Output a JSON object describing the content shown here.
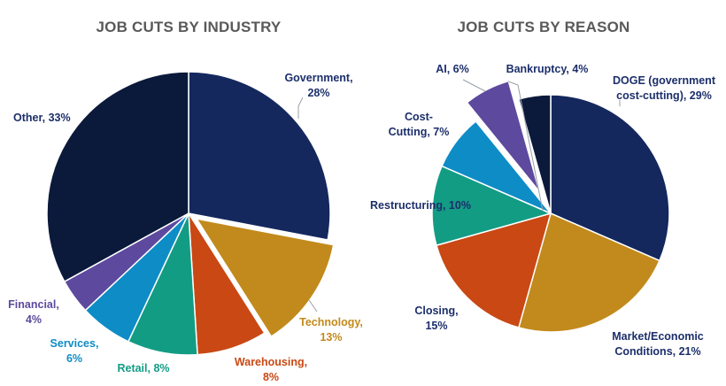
{
  "colors": {
    "navy": "#14285e",
    "dark_navy": "#0b1a3b",
    "gold": "#c28a1c",
    "orange": "#c94814",
    "teal": "#139c84",
    "blue": "#0e8cc6",
    "purple": "#5d4a9e",
    "label_navy": "#1c2f6b"
  },
  "chart_data": [
    {
      "type": "pie",
      "title": "JOB CUTS BY INDUSTRY",
      "start": "12 o'clock",
      "direction": "clockwise",
      "slices": [
        {
          "name": "Government",
          "value": 28,
          "label_lines": [
            "Government,",
            "28%"
          ],
          "color": "#14285e",
          "label_color": "#1c2f6b",
          "exploded": false
        },
        {
          "name": "Technology",
          "value": 13,
          "label_lines": [
            "Technology,",
            "13%"
          ],
          "color": "#c28a1c",
          "label_color": "#c28a1c",
          "exploded": true
        },
        {
          "name": "Warehousing",
          "value": 8,
          "label_lines": [
            "Warehousing,",
            "8%"
          ],
          "color": "#c94814",
          "label_color": "#c94814",
          "exploded": false
        },
        {
          "name": "Retail",
          "value": 8,
          "label_lines": [
            "Retail, 8%"
          ],
          "color": "#139c84",
          "label_color": "#139c84",
          "exploded": false
        },
        {
          "name": "Services",
          "value": 6,
          "label_lines": [
            "Services,",
            "6%"
          ],
          "color": "#0e8cc6",
          "label_color": "#0e8cc6",
          "exploded": false
        },
        {
          "name": "Financial",
          "value": 4,
          "label_lines": [
            "Financial,",
            "4%"
          ],
          "color": "#5d4a9e",
          "label_color": "#5d4a9e",
          "exploded": false
        },
        {
          "name": "Other",
          "value": 33,
          "label_lines": [
            "Other, 33%"
          ],
          "color": "#0b1a3b",
          "label_color": "#1c2f6b",
          "exploded": false
        }
      ]
    },
    {
      "type": "pie",
      "title": "JOB CUTS BY REASON",
      "start": "12 o'clock",
      "direction": "clockwise",
      "slices": [
        {
          "name": "DOGE (government cost-cutting)",
          "value": 29,
          "label_lines": [
            "DOGE (government",
            "cost-cutting), 29%"
          ],
          "color": "#14285e",
          "label_color": "#1c2f6b",
          "exploded": false
        },
        {
          "name": "Market/Economic Conditions",
          "value": 21,
          "label_lines": [
            "Market/Economic",
            "Conditions, 21%"
          ],
          "color": "#c28a1c",
          "label_color": "#1c2f6b",
          "exploded": false
        },
        {
          "name": "Closing",
          "value": 15,
          "label_lines": [
            "Closing,",
            "15%"
          ],
          "color": "#c94814",
          "label_color": "#1c2f6b",
          "exploded": false
        },
        {
          "name": "Restructuring",
          "value": 10,
          "label_lines": [
            "Restructuring, 10%"
          ],
          "color": "#139c84",
          "label_color": "#1c2f6b",
          "exploded": false
        },
        {
          "name": "Cost-Cutting",
          "value": 7,
          "label_lines": [
            "Cost-",
            "Cutting, 7%"
          ],
          "color": "#0e8cc6",
          "label_color": "#1c2f6b",
          "exploded": false
        },
        {
          "name": "AI",
          "value": 6,
          "label_lines": [
            "AI, 6%"
          ],
          "color": "#5d4a9e",
          "label_color": "#1c2f6b",
          "exploded": true
        },
        {
          "name": "Bankruptcy",
          "value": 4,
          "label_lines": [
            "Bankruptcy, 4%"
          ],
          "color": "#0b1a3b",
          "label_color": "#1c2f6b",
          "exploded": false
        }
      ]
    }
  ]
}
